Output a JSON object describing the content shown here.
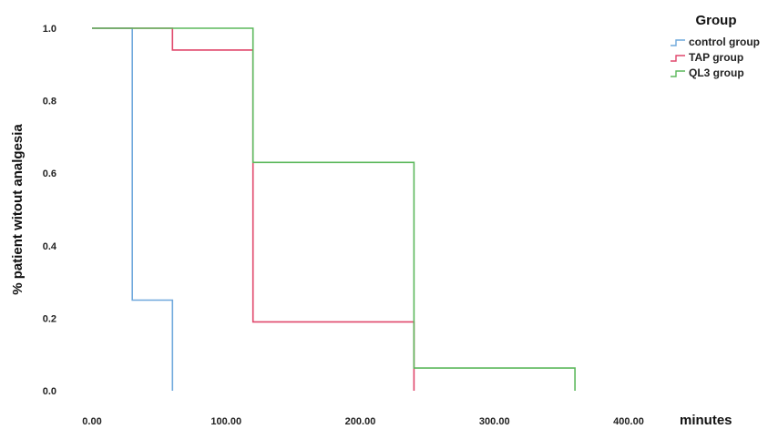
{
  "chart_data": {
    "type": "line",
    "step": true,
    "xlabel": "minutes",
    "ylabel": "% patient witout analgesia",
    "xlim": [
      0,
      400
    ],
    "ylim": [
      0,
      1
    ],
    "xticks": [
      "0.00",
      "100.00",
      "200.00",
      "300.00",
      "400.00"
    ],
    "yticks": [
      "0.0",
      "0.2",
      "0.4",
      "0.6",
      "0.8",
      "1.0"
    ],
    "grid": false,
    "legend": {
      "title": "Group",
      "position": "top-right"
    },
    "series": [
      {
        "name": "control group",
        "color": "#6fa8dc",
        "points": [
          [
            0,
            1.0
          ],
          [
            30,
            1.0
          ],
          [
            30,
            0.25
          ],
          [
            60,
            0.25
          ],
          [
            60,
            0.0
          ]
        ]
      },
      {
        "name": "TAP group",
        "color": "#e0476b",
        "points": [
          [
            0,
            1.0
          ],
          [
            60,
            1.0
          ],
          [
            60,
            0.94
          ],
          [
            120,
            0.94
          ],
          [
            120,
            0.19
          ],
          [
            240,
            0.19
          ],
          [
            240,
            0.0
          ]
        ]
      },
      {
        "name": "QL3 group",
        "color": "#5cb85c",
        "points": [
          [
            0,
            1.0
          ],
          [
            120,
            1.0
          ],
          [
            120,
            0.63
          ],
          [
            240,
            0.63
          ],
          [
            240,
            0.0625
          ],
          [
            360,
            0.0625
          ],
          [
            360,
            0.0
          ]
        ]
      }
    ]
  }
}
